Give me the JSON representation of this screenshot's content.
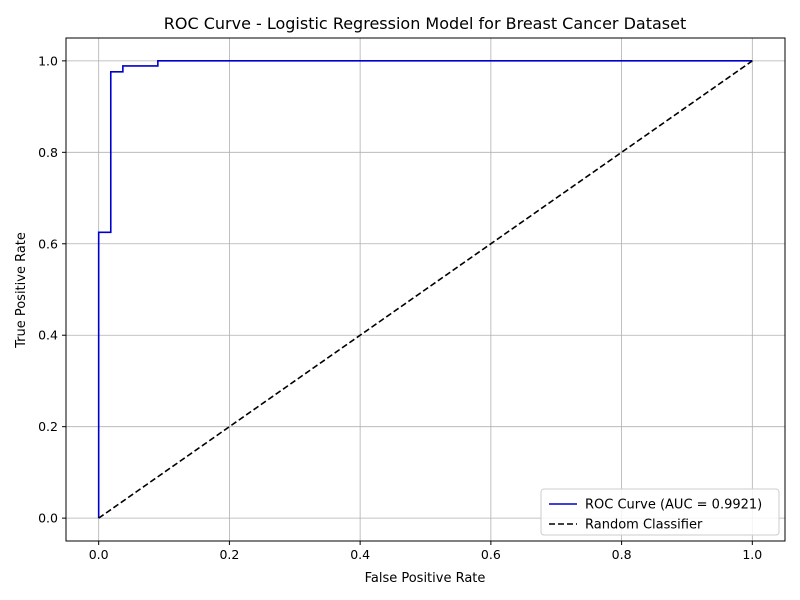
{
  "chart_data": {
    "type": "line",
    "title": "ROC Curve - Logistic Regression Model for Breast Cancer Dataset",
    "xlabel": "False Positive Rate",
    "ylabel": "True Positive Rate",
    "xlim": [
      -0.05,
      1.05
    ],
    "ylim": [
      -0.05,
      1.05
    ],
    "xticks": [
      0.0,
      0.2,
      0.4,
      0.6,
      0.8,
      1.0
    ],
    "yticks": [
      0.0,
      0.2,
      0.4,
      0.6,
      0.8,
      1.0
    ],
    "xtick_labels": [
      "0.0",
      "0.2",
      "0.4",
      "0.6",
      "0.8",
      "1.0"
    ],
    "ytick_labels": [
      "0.0",
      "0.2",
      "0.4",
      "0.6",
      "0.8",
      "1.0"
    ],
    "grid": true,
    "legend_position": "bottom-right",
    "series": [
      {
        "name": "ROC Curve (AUC = 0.9921)",
        "color": "#0000cc",
        "style": "solid",
        "x": [
          0.0,
          0.0,
          0.0185,
          0.0185,
          0.037,
          0.037,
          0.0905,
          0.0905,
          1.0
        ],
        "y": [
          0.0,
          0.625,
          0.625,
          0.976,
          0.976,
          0.989,
          0.989,
          1.0,
          1.0
        ]
      },
      {
        "name": "Random Classifier",
        "color": "#000000",
        "style": "dashed",
        "x": [
          0.0,
          1.0
        ],
        "y": [
          0.0,
          1.0
        ]
      }
    ]
  }
}
